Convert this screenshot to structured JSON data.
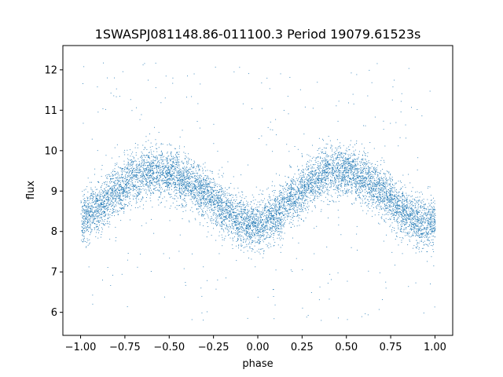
{
  "chart_data": {
    "type": "scatter",
    "title": "1SWASPJ081148.86-011100.3 Period 19079.61523s",
    "xlabel": "phase",
    "ylabel": "flux",
    "xlim": [
      -1.1,
      1.1
    ],
    "ylim": [
      5.43,
      12.6
    ],
    "xticks": [
      -1.0,
      -0.75,
      -0.5,
      -0.25,
      0.0,
      0.25,
      0.5,
      0.75,
      1.0
    ],
    "xtick_labels": [
      "−1.00",
      "−0.75",
      "−0.50",
      "−0.25",
      "0.00",
      "0.25",
      "0.50",
      "0.75",
      "1.00"
    ],
    "yticks": [
      6,
      7,
      8,
      9,
      10,
      11,
      12
    ],
    "ytick_labels": [
      "6",
      "7",
      "8",
      "9",
      "10",
      "11",
      "12"
    ],
    "grid": false,
    "point_color": "#1f77b4",
    "x_range": [
      -1.0,
      1.0
    ],
    "trend": {
      "phase": [
        -1.0,
        -0.9,
        -0.8,
        -0.7,
        -0.6,
        -0.5,
        -0.4,
        -0.3,
        -0.2,
        -0.1,
        0.0,
        0.1,
        0.2,
        0.3,
        0.4,
        0.5,
        0.6,
        0.7,
        0.8,
        0.9,
        1.0
      ],
      "flux": [
        8.3,
        8.6,
        9.0,
        9.35,
        9.5,
        9.45,
        9.25,
        8.95,
        8.6,
        8.25,
        8.15,
        8.4,
        8.85,
        9.25,
        9.5,
        9.5,
        9.3,
        9.0,
        8.6,
        8.25,
        8.25
      ],
      "scatter": 0.3,
      "outlier_range": [
        5.8,
        12.3
      ]
    },
    "n_points": 9000
  }
}
